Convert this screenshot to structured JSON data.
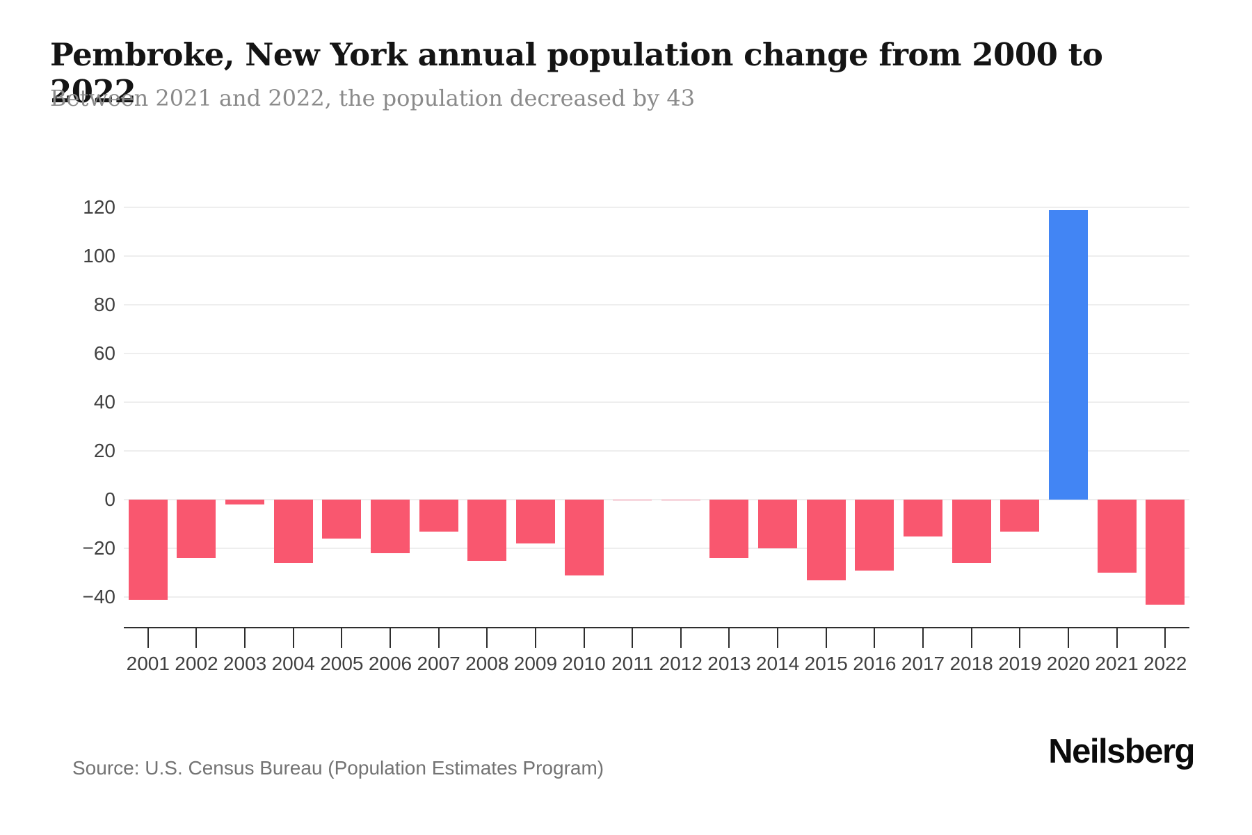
{
  "header": {
    "title": "Pembroke, New York annual population change from 2000 to 2022",
    "subtitle": "Between 2021 and 2022, the population decreased by 43"
  },
  "footer": {
    "source": "Source: U.S. Census Bureau (Population Estimates Program)",
    "logo": "Neilsberg"
  },
  "chart_data": {
    "type": "bar",
    "title": "Pembroke, New York annual population change from 2000 to 2022",
    "xlabel": "",
    "ylabel": "",
    "categories": [
      "2001",
      "2002",
      "2003",
      "2004",
      "2005",
      "2006",
      "2007",
      "2008",
      "2009",
      "2010",
      "2011",
      "2012",
      "2013",
      "2014",
      "2015",
      "2016",
      "2017",
      "2018",
      "2019",
      "2020",
      "2021",
      "2022"
    ],
    "values": [
      -41,
      -24,
      -2,
      -26,
      -16,
      -22,
      -13,
      -25,
      -18,
      -31,
      0,
      0,
      -24,
      -20,
      -33,
      -29,
      -15,
      -26,
      -13,
      119,
      -30,
      -43
    ],
    "yticks": [
      120,
      100,
      80,
      60,
      40,
      20,
      0,
      -20,
      -40
    ],
    "ylim": [
      -52,
      134
    ],
    "grid": true,
    "legend": false,
    "colors": {
      "positive_bar": "#4285f4",
      "negative_bar": "#f9576f",
      "zero_bar": "#f7d7de",
      "gridline": "#eeeeee",
      "axis": "#2e2e2e"
    }
  }
}
